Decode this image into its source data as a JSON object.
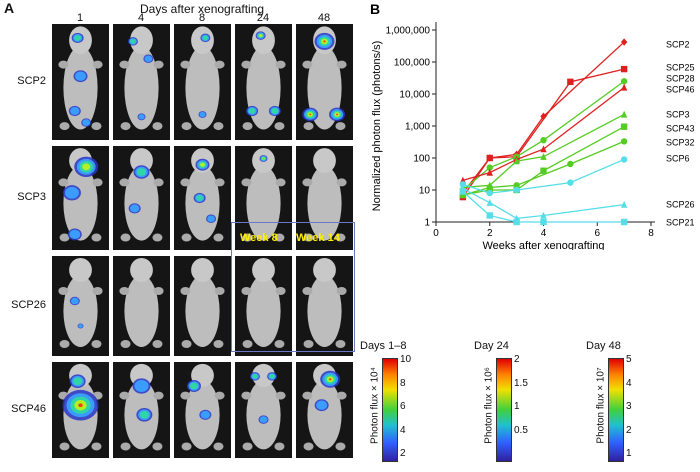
{
  "panel_a": {
    "letter": "A",
    "header": "Days after xenografting",
    "days": [
      "1",
      "4",
      "8",
      "24",
      "48"
    ],
    "rows": [
      "SCP2",
      "SCP3",
      "SCP26",
      "SCP46"
    ],
    "insets": [
      "Week 8",
      "Week 14"
    ],
    "colorbars": [
      {
        "title": "Days 1–8",
        "label": "Photon flux × 10⁴",
        "ticks": [
          "10",
          "8",
          "6",
          "4",
          "2"
        ]
      },
      {
        "title": "Day 24",
        "label": "Photon flux × 10⁶",
        "ticks": [
          "2",
          "1.5",
          "1",
          "0.5"
        ]
      },
      {
        "title": "Day 48",
        "label": "Photon flux × 10⁷",
        "ticks": [
          "5",
          "4",
          "3",
          "2",
          "1"
        ]
      }
    ]
  },
  "chart_data": {
    "type": "line",
    "panel_letter": "B",
    "title": "",
    "xlabel": "Weeks after xenografting",
    "ylabel": "Normalized photon flux (photons/s)",
    "xlim": [
      0,
      8
    ],
    "ylim": [
      1,
      1000000
    ],
    "yscale": "log",
    "x_ticks": [
      "0",
      "2",
      "4",
      "6",
      "8"
    ],
    "y_ticks": [
      "1",
      "10",
      "100",
      "1,000",
      "10,000",
      "100,000",
      "1,000,000"
    ],
    "grid": false,
    "series": [
      {
        "name": "SCP2",
        "color": "#e02020",
        "marker": "diamond",
        "x": [
          1,
          2,
          3,
          4,
          7
        ],
        "y": [
          8,
          100,
          130,
          2000,
          420000
        ]
      },
      {
        "name": "SCP25",
        "color": "#e02020",
        "marker": "square",
        "x": [
          1,
          2,
          3,
          5,
          7
        ],
        "y": [
          6,
          100,
          110,
          24000,
          60000
        ]
      },
      {
        "name": "SCP28",
        "color": "#55cc22",
        "marker": "circle",
        "x": [
          1,
          2,
          3,
          4,
          7
        ],
        "y": [
          10,
          50,
          110,
          360,
          25000
        ]
      },
      {
        "name": "SCP46",
        "color": "#e02020",
        "marker": "triangle",
        "x": [
          1,
          2,
          3,
          4,
          7
        ],
        "y": [
          20,
          35,
          90,
          190,
          16000
        ]
      },
      {
        "name": "SCP3",
        "color": "#55cc22",
        "marker": "triangle",
        "x": [
          1,
          2,
          3,
          4,
          7
        ],
        "y": [
          12,
          14,
          80,
          110,
          2300
        ]
      },
      {
        "name": "SCP43",
        "color": "#55cc22",
        "marker": "square",
        "x": [
          1,
          2,
          3,
          4,
          7
        ],
        "y": [
          7,
          10,
          10,
          40,
          950
        ]
      },
      {
        "name": "SCP32",
        "color": "#55cc22",
        "marker": "circle",
        "x": [
          1,
          2,
          3,
          5,
          7
        ],
        "y": [
          7,
          12,
          14,
          65,
          330
        ]
      },
      {
        "name": "SCP6",
        "color": "#55dde8",
        "marker": "circle",
        "x": [
          1,
          2,
          3,
          5,
          7
        ],
        "y": [
          15,
          8,
          10,
          17,
          90
        ]
      },
      {
        "name": "SCP26",
        "color": "#55dde8",
        "marker": "triangle",
        "x": [
          1,
          2,
          3,
          4,
          7
        ],
        "y": [
          11,
          4,
          1.3,
          1.6,
          3.5
        ]
      },
      {
        "name": "SCP21",
        "color": "#55dde8",
        "marker": "square",
        "x": [
          1,
          2,
          3,
          4,
          7
        ],
        "y": [
          9,
          1.6,
          1,
          1,
          1
        ]
      }
    ],
    "legend_placement": "right"
  }
}
